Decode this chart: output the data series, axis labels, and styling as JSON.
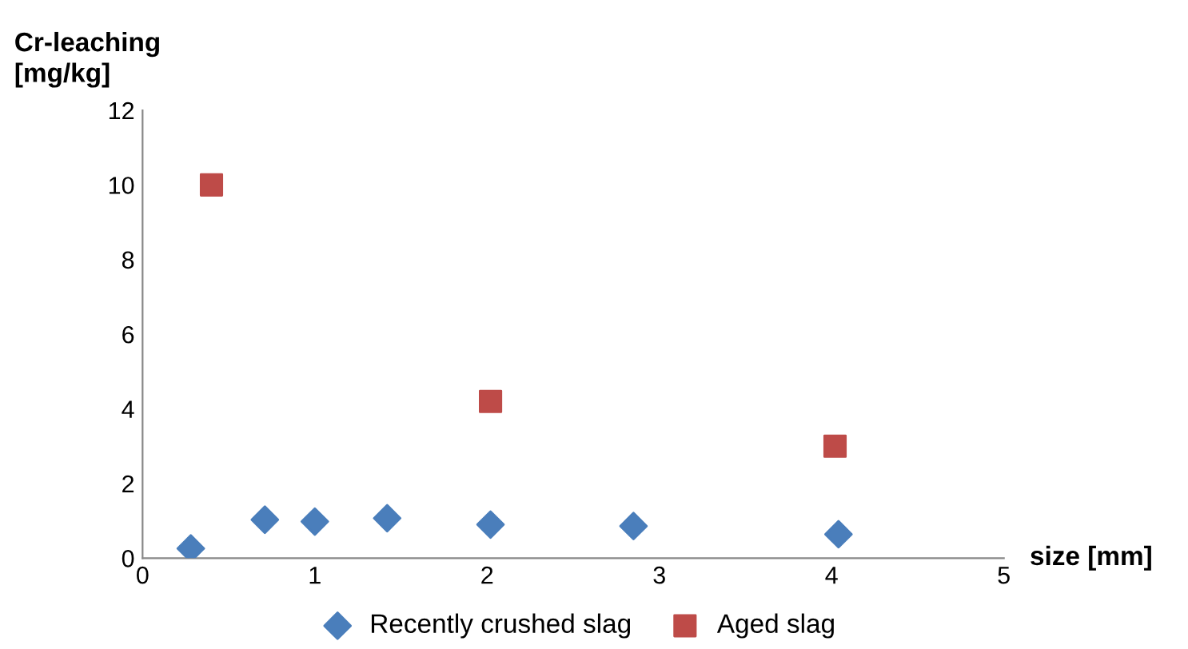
{
  "chart_data": {
    "type": "scatter",
    "ylabel": "Cr-leaching\n[mg/kg]",
    "xlabel": "size [mm]",
    "xlim": [
      0,
      5
    ],
    "xticks": [
      0,
      1,
      2,
      3,
      4,
      5
    ],
    "ylim": [
      0,
      12
    ],
    "yticks": [
      0,
      2,
      4,
      6,
      8,
      10,
      12
    ],
    "grid": false,
    "legend": "bottom",
    "series": [
      {
        "name": "Recently crushed slag",
        "color": "#4a7ebb",
        "marker": "diamond",
        "x": [
          0.28,
          0.71,
          1.0,
          1.42,
          2.02,
          2.85,
          4.04
        ],
        "values": [
          0.26,
          1.03,
          0.98,
          1.07,
          0.9,
          0.86,
          0.64
        ]
      },
      {
        "name": "Aged slag",
        "color": "#be4b48",
        "marker": "square",
        "x": [
          0.4,
          2.02,
          4.02
        ],
        "values": [
          10.0,
          4.2,
          3.0
        ]
      }
    ]
  }
}
